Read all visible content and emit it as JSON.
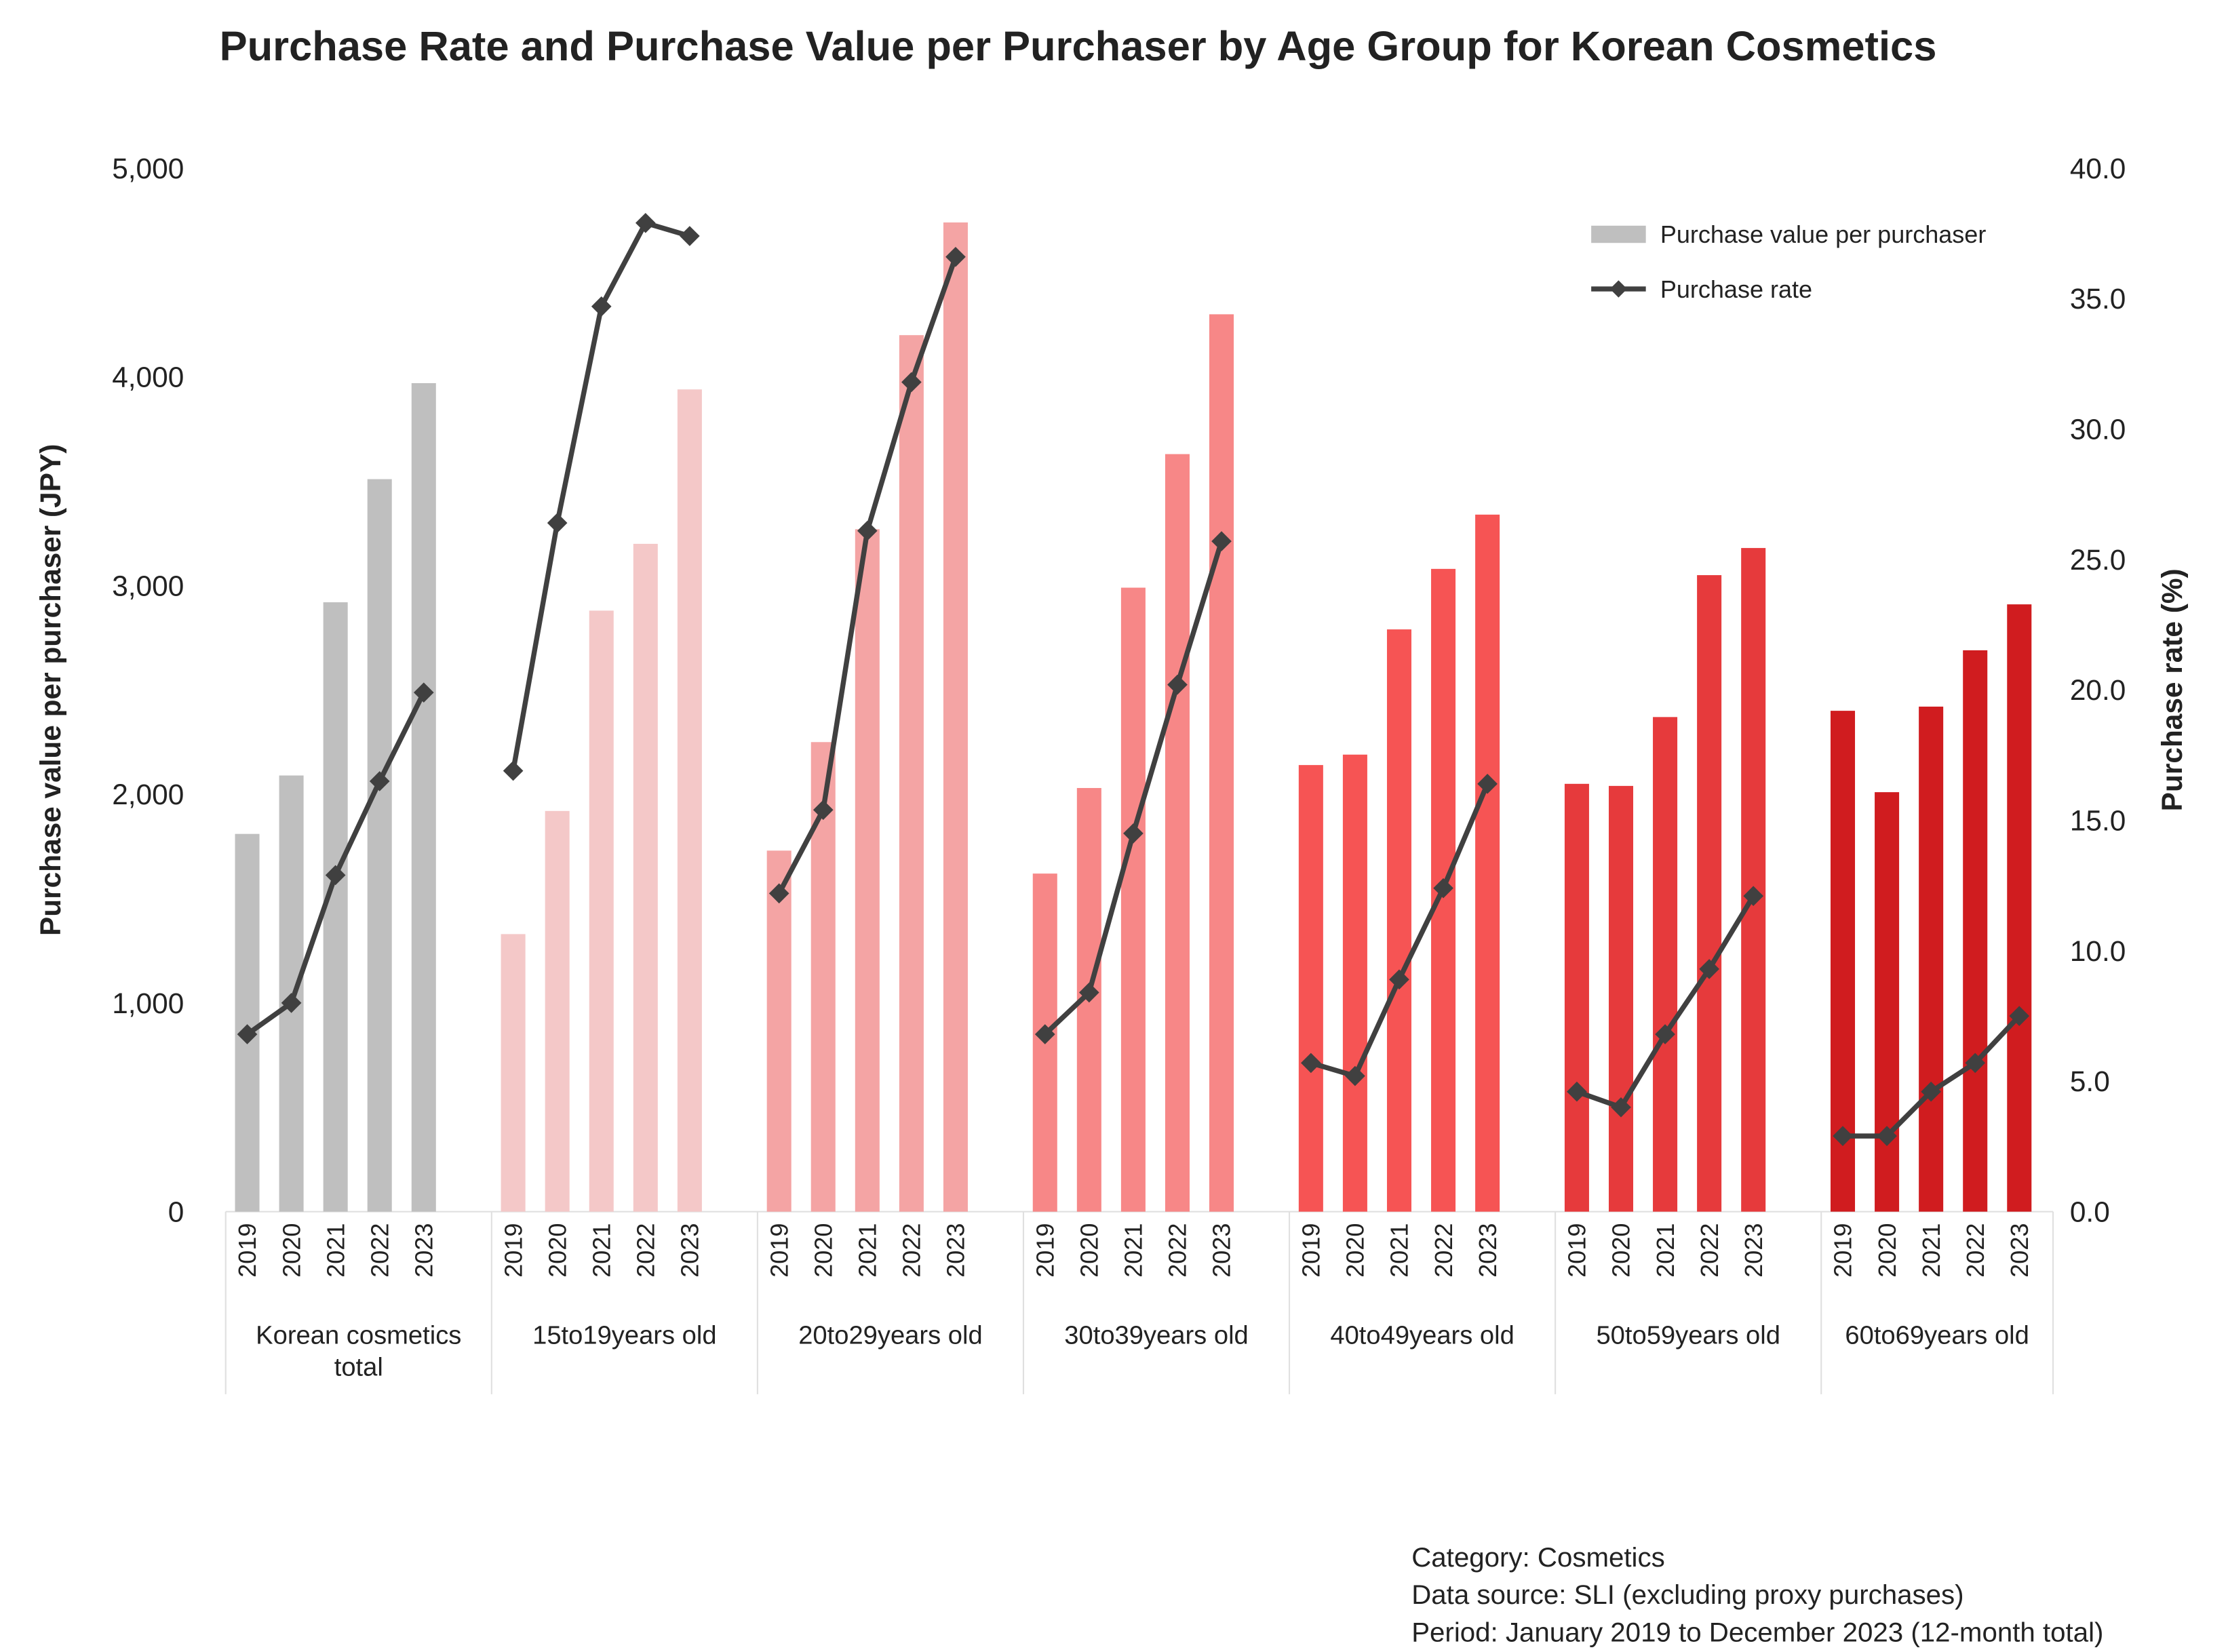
{
  "chart_data": {
    "type": "combo",
    "title": "Purchase Rate and Purchase Value per Purchaser by Age Group for Korean Cosmetics",
    "y_label": "Purchase value per purchaser (JPY)",
    "y2_label": "Purchase rate (%)",
    "categories": [
      "Korean cosmetics total",
      "15to19years old",
      "20to29years old",
      "30to39years old",
      "40to49years old",
      "50to59years old",
      "60to69years old"
    ],
    "years": [
      "2019",
      "2020",
      "2021",
      "2022",
      "2023"
    ],
    "group_colors": [
      "#bfbfbf",
      "#f4c8c8",
      "#f4a4a4",
      "#f78787",
      "#f65454",
      "#e63a3c",
      "#d01c1f"
    ],
    "series": [
      {
        "name": "Purchase value per purchaser",
        "color": "#bfbfbf",
        "values": [
          [
            1810,
            2090,
            2920,
            3510,
            3970
          ],
          [
            1330,
            1920,
            2880,
            3200,
            3940
          ],
          [
            1730,
            2250,
            3270,
            4200,
            4740
          ],
          [
            1620,
            2030,
            2990,
            3630,
            4300
          ],
          [
            2140,
            2190,
            2790,
            3080,
            3340
          ],
          [
            2050,
            2040,
            2370,
            3050,
            3180
          ],
          [
            2400,
            2010,
            2420,
            2690,
            2910
          ]
        ]
      },
      {
        "name": "Purchase rate",
        "color": "#404040",
        "axis": "y2",
        "values": [
          [
            6.8,
            8.0,
            12.9,
            16.5,
            19.9
          ],
          [
            16.9,
            26.4,
            34.7,
            37.9,
            37.4
          ],
          [
            12.2,
            15.4,
            26.1,
            31.8,
            36.6
          ],
          [
            6.8,
            8.4,
            14.5,
            20.2,
            25.7
          ],
          [
            5.7,
            5.2,
            8.9,
            12.4,
            16.4
          ],
          [
            4.6,
            4.0,
            6.8,
            9.3,
            12.1
          ],
          [
            2.9,
            2.9,
            4.6,
            5.7,
            7.5
          ]
        ]
      }
    ],
    "ylim": [
      0,
      5000
    ],
    "yticks": [
      0,
      {
        "value": 1000,
        "label": "1,000"
      },
      {
        "value": 2000,
        "label": "2,000"
      },
      {
        "value": 3000,
        "label": "3,000"
      },
      {
        "value": 4000,
        "label": "4,000"
      },
      {
        "value": 5000,
        "label": "5,000"
      }
    ],
    "y2lim": [
      0,
      40
    ],
    "y2ticks": [
      {
        "value": 0,
        "label": "0.0"
      },
      {
        "value": 5,
        "label": "5.0"
      },
      {
        "value": 10,
        "label": "10.0"
      },
      {
        "value": 15,
        "label": "15.0"
      },
      {
        "value": 20,
        "label": "20.0"
      },
      {
        "value": 25,
        "label": "25.0"
      },
      {
        "value": 30,
        "label": "30.0"
      },
      {
        "value": 35,
        "label": "35.0"
      },
      {
        "value": 40,
        "label": "40.0"
      }
    ],
    "legend": "upper right",
    "notes": [
      "Category: Cosmetics",
      "Data source: SLI (excluding proxy purchases)",
      "Period: January 2019 to December 2023 (12-month total)"
    ]
  }
}
